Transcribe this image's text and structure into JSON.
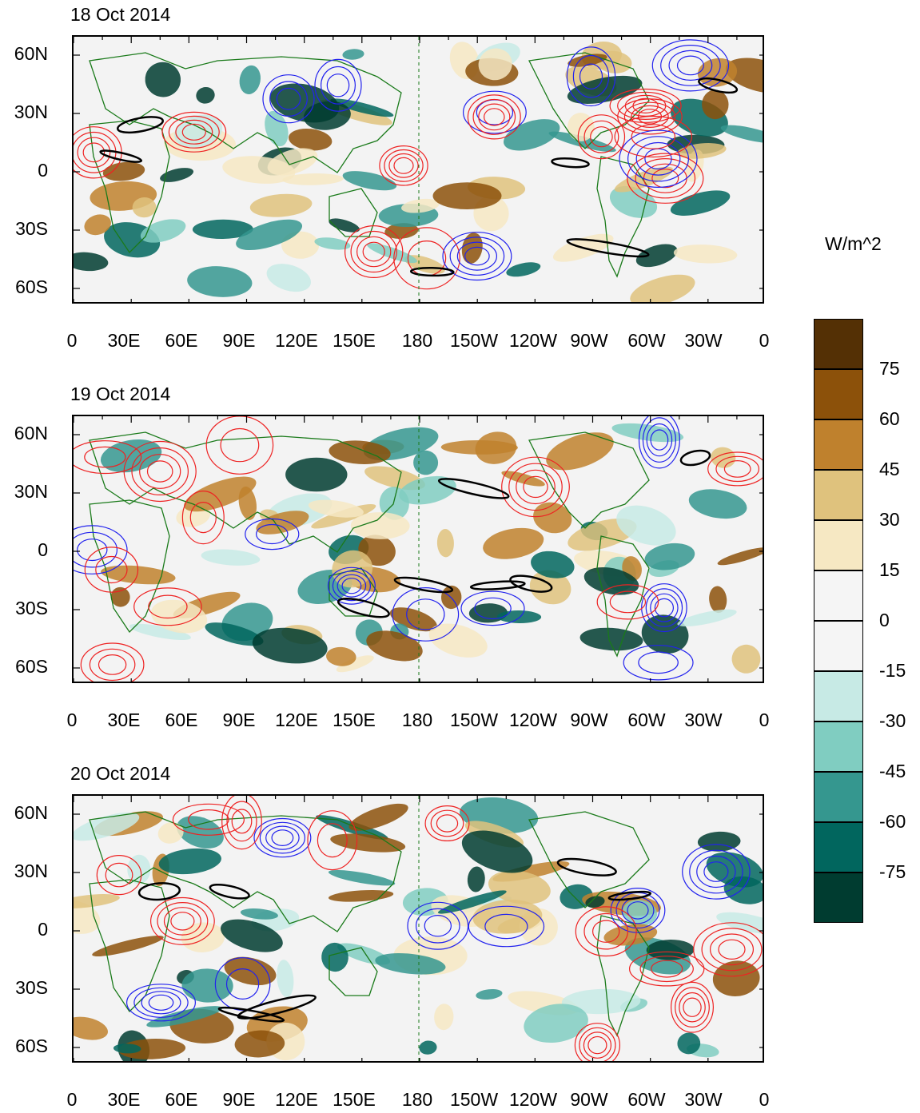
{
  "panels": [
    {
      "title": "18 Oct 2014"
    },
    {
      "title": "19 Oct 2014"
    },
    {
      "title": "20 Oct 2014"
    }
  ],
  "lat_labels": [
    "60N",
    "30N",
    "0",
    "30S",
    "60S"
  ],
  "lon_labels": [
    "0",
    "30E",
    "60E",
    "90E",
    "120E",
    "150E",
    "180",
    "150W",
    "120W",
    "90W",
    "60W",
    "30W",
    "0"
  ],
  "colorbar": {
    "unit": "W/m^2",
    "labels": [
      "75",
      "60",
      "45",
      "30",
      "15",
      "0",
      "-15",
      "-30",
      "-45",
      "-60",
      "-75"
    ],
    "colors": [
      "#543005",
      "#8c510a",
      "#bf812d",
      "#dfc27d",
      "#f6e8c3",
      "#f5f5f5",
      "#f5f5f5",
      "#c7eae5",
      "#80cdc1",
      "#35978f",
      "#01665e",
      "#003c30"
    ]
  },
  "colors": {
    "positive_contour": "#ee2222",
    "negative_contour": "#2222ee",
    "significance_contour": "#000000",
    "coastline": "#1a7a1a",
    "background": "#f3f3f3"
  }
}
